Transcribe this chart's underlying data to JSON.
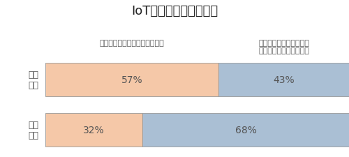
{
  "title": "IoTがもたらす期待効果",
  "categories": [
    "海外\n企業",
    "日本\n企業"
  ],
  "col1_label": "新たな収益源の創出に貢献する",
  "col2_label": "オペレーションの効率化\n／生産性向上に貢献する",
  "values_col1": [
    57,
    32
  ],
  "values_col2": [
    43,
    68
  ],
  "color_col1": "#F5C8A8",
  "color_col2": "#AABFD4",
  "bar_edge_color": "#999999",
  "text_color": "#555555",
  "label_color": "#555555",
  "title_color": "#222222",
  "background_color": "#ffffff",
  "title_fontsize": 13,
  "col_label_fontsize": 8,
  "bar_text_fontsize": 10,
  "cat_fontsize": 9
}
